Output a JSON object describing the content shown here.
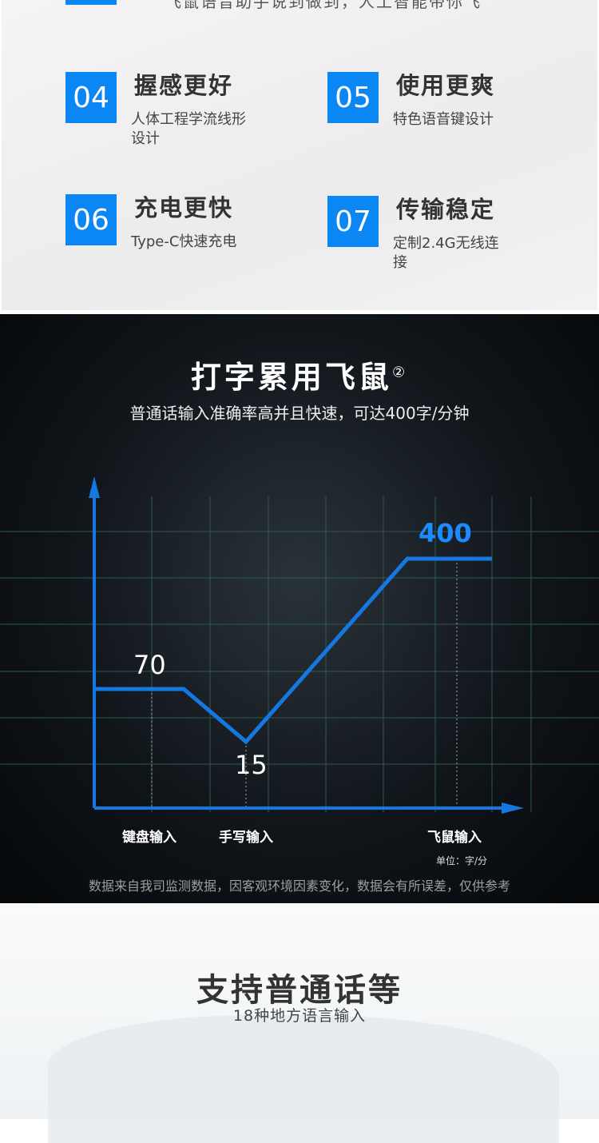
{
  "features": {
    "top_text": "飞鼠语音助手说到做到，人工智能带你飞",
    "items": [
      {
        "num": "04",
        "title": "握感更好",
        "desc": "人体工程学流线形设计"
      },
      {
        "num": "05",
        "title": "使用更爽",
        "desc": "特色语音键设计"
      },
      {
        "num": "06",
        "title": "充电更快",
        "desc": "Type-C快速充电"
      },
      {
        "num": "07",
        "title": "传输稳定",
        "desc": "定制2.4G无线连接"
      }
    ]
  },
  "typing": {
    "title": "打字累用飞鼠",
    "footnote": "②",
    "subtitle": "普通话输入准确率高并且快速，可达400字/分钟",
    "unit": "单位：字/分",
    "note": "数据来自我司监测数据，因客观环境因素变化，数据会有所误差，仅供参考"
  },
  "chart_data": {
    "type": "line",
    "categories": [
      "键盘输入",
      "手写输入",
      "飞鼠输入"
    ],
    "values": [
      70,
      15,
      400
    ],
    "value_labels": [
      "70",
      "15",
      "400"
    ],
    "line_color": "#1478e0",
    "highlight_color": "#1a8cff",
    "grid": true
  },
  "dialect": {
    "title": "支持普通话等",
    "subtitle": "18种地方语言输入"
  }
}
